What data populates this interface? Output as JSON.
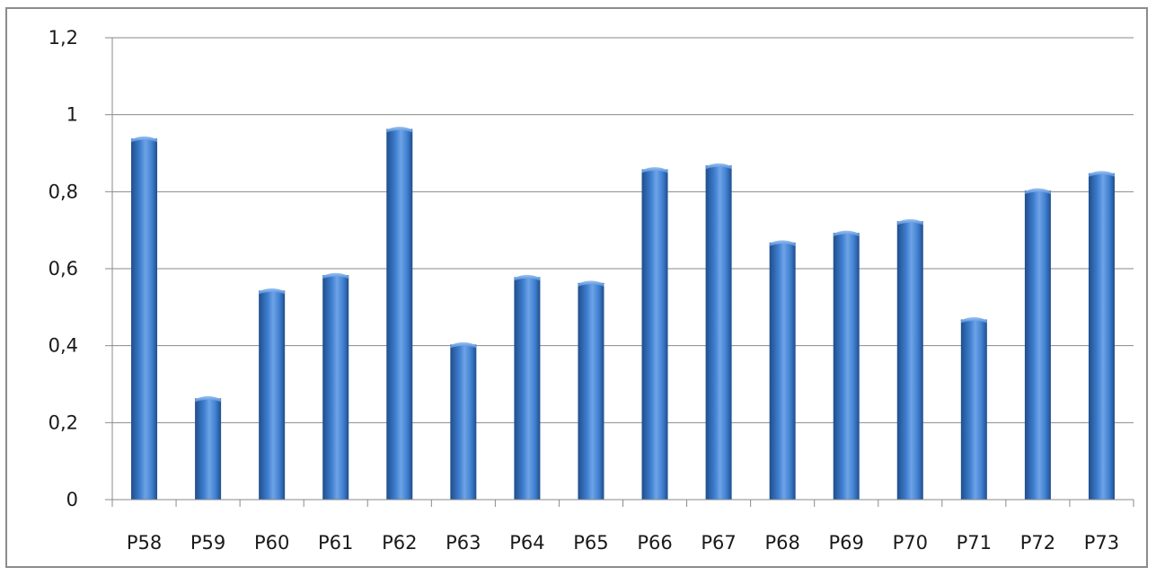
{
  "chart_data": {
    "type": "bar",
    "title": "",
    "xlabel": "",
    "ylabel": "",
    "categories": [
      "P58",
      "P59",
      "P60",
      "P61",
      "P62",
      "P63",
      "P64",
      "P65",
      "P66",
      "P67",
      "P68",
      "P69",
      "P70",
      "P71",
      "P72",
      "P73"
    ],
    "values": [
      0.945,
      0.27,
      0.55,
      0.59,
      0.97,
      0.41,
      0.585,
      0.57,
      0.865,
      0.875,
      0.675,
      0.7,
      0.73,
      0.475,
      0.81,
      0.855
    ],
    "ylim": [
      0,
      1.2
    ],
    "y_ticks": [
      "0",
      "0,2",
      "0,4",
      "0,6",
      "0,8",
      "1",
      "1,2"
    ],
    "y_tick_values": [
      0,
      0.2,
      0.4,
      0.6,
      0.8,
      1.0,
      1.2
    ],
    "grid": true,
    "legend": "none",
    "colors": {
      "bar_dark": "#1f4e8c",
      "bar_mid": "#3f7fd0",
      "bar_light": "#6ea3e6",
      "gridline": "#8a8a8a",
      "axis": "#8a8a8a",
      "frame": "#8c8c8c"
    }
  }
}
